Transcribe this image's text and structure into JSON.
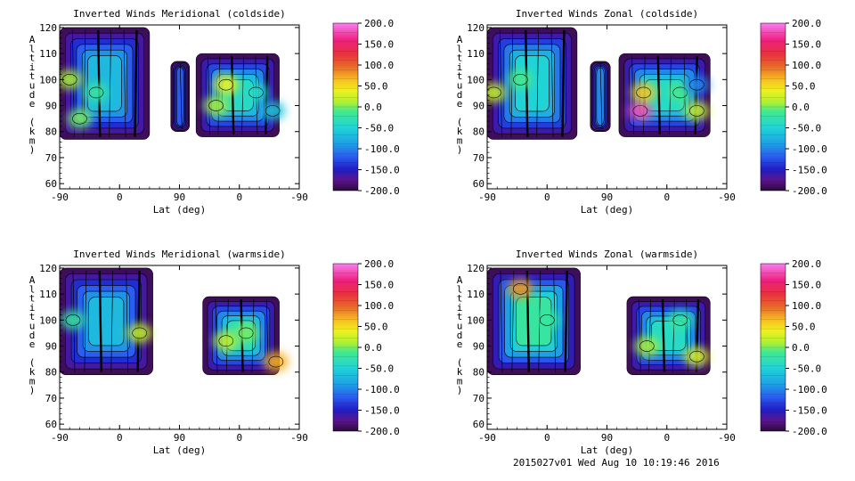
{
  "footer": "2015027v01 Wed Aug 10 10:19:46 2016",
  "chart_data": [
    {
      "type": "heatmap",
      "title": "Inverted Winds Meridional (coldside)",
      "xlabel": "Lat (deg)",
      "ylabel": "Altitude (km)",
      "x_ticks": [
        "-90",
        "0",
        "90",
        "0",
        "-90"
      ],
      "y_ticks": [
        120,
        110,
        100,
        90,
        80,
        70,
        60
      ],
      "ylim": [
        58,
        121
      ],
      "colorbar": {
        "min": -200,
        "max": 200,
        "ticks": [
          "200.0",
          "150.0",
          "100.0",
          "50.0",
          "0.0",
          "-50.0",
          "-100.0",
          "-150.0",
          "-200.0"
        ]
      },
      "regions": [
        {
          "x0": -90,
          "x1": 45,
          "y0": 77,
          "y1": 120,
          "value": -70
        },
        {
          "x0": 77,
          "x1": 105,
          "y0": 80,
          "y1": 107,
          "value": -120
        },
        {
          "x0": 115,
          "x1": 240,
          "y0": 78,
          "y1": 110,
          "value": -40
        }
      ],
      "blobs": [
        {
          "x": -75,
          "y": 100,
          "value": 10
        },
        {
          "x": -35,
          "y": 95,
          "value": -20
        },
        {
          "x": -60,
          "y": 85,
          "value": 0
        },
        {
          "x": 160,
          "y": 98,
          "value": 40
        },
        {
          "x": 145,
          "y": 90,
          "value": 10
        },
        {
          "x": 205,
          "y": 95,
          "value": -40
        },
        {
          "x": 230,
          "y": 88,
          "value": -60
        }
      ]
    },
    {
      "type": "heatmap",
      "title": "Inverted Winds Zonal (coldside)",
      "xlabel": "Lat (deg)",
      "ylabel": "Altitude (km)",
      "x_ticks": [
        "-90",
        "0",
        "90",
        "0",
        "-90"
      ],
      "y_ticks": [
        120,
        110,
        100,
        90,
        80,
        70,
        60
      ],
      "ylim": [
        58,
        121
      ],
      "colorbar": {
        "min": -200,
        "max": 200,
        "ticks": [
          "200.0",
          "150.0",
          "100.0",
          "50.0",
          "0.0",
          "-50.0",
          "-100.0",
          "-150.0",
          "-200.0"
        ]
      },
      "regions": [
        {
          "x0": -90,
          "x1": 45,
          "y0": 77,
          "y1": 120,
          "value": -50
        },
        {
          "x0": 65,
          "x1": 95,
          "y0": 80,
          "y1": 107,
          "value": -100
        },
        {
          "x0": 108,
          "x1": 245,
          "y0": 78,
          "y1": 110,
          "value": -40
        }
      ],
      "blobs": [
        {
          "x": -80,
          "y": 95,
          "value": 20
        },
        {
          "x": -40,
          "y": 100,
          "value": -10
        },
        {
          "x": 140,
          "y": 88,
          "value": 180
        },
        {
          "x": 145,
          "y": 95,
          "value": 60
        },
        {
          "x": 200,
          "y": 95,
          "value": -10
        },
        {
          "x": 225,
          "y": 98,
          "value": -100
        },
        {
          "x": 225,
          "y": 88,
          "value": 20
        }
      ]
    },
    {
      "type": "heatmap",
      "title": "Inverted Winds Meridional (warmside)",
      "xlabel": "Lat (deg)",
      "ylabel": "Altitude (km)",
      "x_ticks": [
        "-90",
        "0",
        "90",
        "0",
        "-90"
      ],
      "y_ticks": [
        120,
        110,
        100,
        90,
        80,
        70,
        60
      ],
      "ylim": [
        58,
        121
      ],
      "colorbar": {
        "min": -200,
        "max": 200,
        "ticks": [
          "200.0",
          "150.0",
          "100.0",
          "50.0",
          "0.0",
          "-50.0",
          "-100.0",
          "-150.0",
          "-200.0"
        ]
      },
      "regions": [
        {
          "x0": -90,
          "x1": 50,
          "y0": 79,
          "y1": 120,
          "value": -70
        },
        {
          "x0": 125,
          "x1": 240,
          "y0": 79,
          "y1": 109,
          "value": -40
        }
      ],
      "blobs": [
        {
          "x": -70,
          "y": 100,
          "value": -20
        },
        {
          "x": 30,
          "y": 95,
          "value": 20
        },
        {
          "x": 160,
          "y": 92,
          "value": 20
        },
        {
          "x": 190,
          "y": 95,
          "value": 0
        },
        {
          "x": 235,
          "y": 84,
          "value": 70
        }
      ]
    },
    {
      "type": "heatmap",
      "title": "Inverted Winds Zonal (warmside)",
      "xlabel": "Lat (deg)",
      "ylabel": "Altitude (km)",
      "x_ticks": [
        "-90",
        "0",
        "90",
        "0",
        "-90"
      ],
      "y_ticks": [
        120,
        110,
        100,
        90,
        80,
        70,
        60
      ],
      "ylim": [
        58,
        121
      ],
      "colorbar": {
        "min": -200,
        "max": 200,
        "ticks": [
          "200.0",
          "150.0",
          "100.0",
          "50.0",
          "0.0",
          "-50.0",
          "-100.0",
          "-150.0",
          "-200.0"
        ]
      },
      "regions": [
        {
          "x0": -90,
          "x1": 50,
          "y0": 79,
          "y1": 120,
          "value": -20
        },
        {
          "x0": 120,
          "x1": 245,
          "y0": 79,
          "y1": 109,
          "value": -40
        }
      ],
      "blobs": [
        {
          "x": -40,
          "y": 112,
          "value": 80
        },
        {
          "x": 0,
          "y": 100,
          "value": -20
        },
        {
          "x": 150,
          "y": 90,
          "value": 10
        },
        {
          "x": 225,
          "y": 86,
          "value": 30
        },
        {
          "x": 200,
          "y": 100,
          "value": -20
        }
      ]
    }
  ]
}
